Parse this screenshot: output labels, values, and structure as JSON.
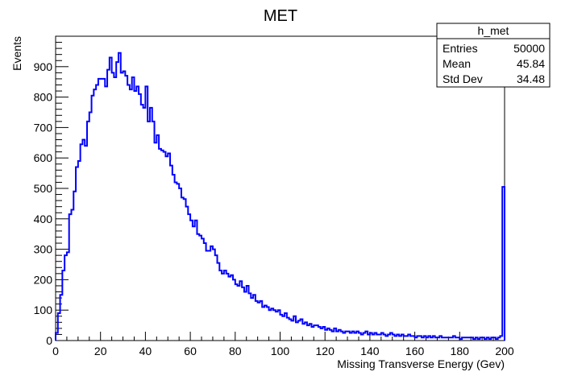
{
  "chart_data": {
    "type": "bar",
    "title": "MET",
    "xlabel": "Missing Transverse Energy (Gev)",
    "ylabel": "Events",
    "xlim": [
      0,
      200
    ],
    "ylim": [
      0,
      1000
    ],
    "xticks": [
      0,
      20,
      40,
      60,
      80,
      100,
      120,
      140,
      160,
      180,
      200
    ],
    "yticks": [
      0,
      100,
      200,
      300,
      400,
      500,
      600,
      700,
      800,
      900
    ],
    "grid": false,
    "line_color": "#0000ff",
    "bin_width": 1,
    "values": [
      25,
      90,
      150,
      230,
      280,
      290,
      415,
      430,
      490,
      570,
      590,
      645,
      660,
      640,
      720,
      750,
      805,
      825,
      840,
      860,
      860,
      860,
      835,
      890,
      930,
      880,
      865,
      915,
      945,
      880,
      885,
      870,
      840,
      825,
      865,
      820,
      835,
      810,
      775,
      765,
      835,
      720,
      765,
      720,
      650,
      675,
      630,
      625,
      620,
      605,
      615,
      575,
      545,
      520,
      515,
      500,
      470,
      465,
      440,
      415,
      395,
      375,
      395,
      350,
      345,
      335,
      320,
      295,
      295,
      310,
      300,
      280,
      255,
      230,
      220,
      230,
      220,
      210,
      215,
      200,
      185,
      180,
      195,
      175,
      160,
      180,
      155,
      140,
      150,
      130,
      125,
      130,
      110,
      115,
      110,
      100,
      105,
      100,
      95,
      100,
      85,
      80,
      90,
      75,
      70,
      65,
      80,
      60,
      65,
      70,
      55,
      60,
      50,
      55,
      45,
      50,
      50,
      45,
      40,
      45,
      35,
      40,
      35,
      30,
      40,
      30,
      35,
      30,
      25,
      30,
      30,
      25,
      30,
      25,
      30,
      25,
      20,
      25,
      30,
      20,
      25,
      20,
      25,
      20,
      20,
      25,
      20,
      15,
      20,
      25,
      20,
      15,
      20,
      15,
      20,
      15,
      15,
      20,
      15,
      15,
      10,
      15,
      15,
      10,
      15,
      10,
      15,
      10,
      15,
      10,
      10,
      15,
      10,
      10,
      10,
      10,
      10,
      15,
      10,
      10,
      5,
      10,
      10,
      10,
      10,
      10,
      5,
      10,
      5,
      10,
      10,
      5,
      10,
      5,
      10,
      10,
      5,
      10,
      15,
      505
    ],
    "stats": {
      "name": "h_met",
      "rows": [
        {
          "label": "Entries",
          "value": "50000"
        },
        {
          "label": "Mean",
          "value": "45.84"
        },
        {
          "label": "Std Dev",
          "value": "34.48"
        }
      ]
    }
  }
}
